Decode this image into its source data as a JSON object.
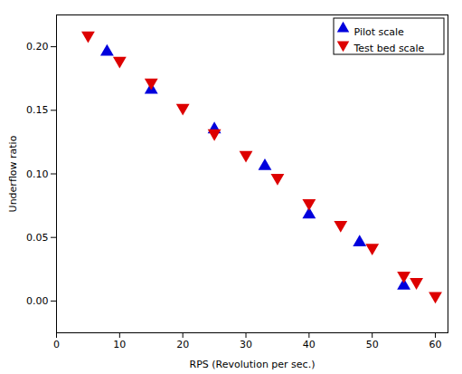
{
  "chart_data": {
    "type": "scatter",
    "xlabel": "RPS (Revolution per sec.)",
    "ylabel": "Underflow ratio",
    "xlim": [
      0,
      62
    ],
    "ylim": [
      -0.025,
      0.225
    ],
    "xticks": [
      0,
      10,
      20,
      30,
      40,
      50,
      60
    ],
    "yticks": [
      {
        "value": 0,
        "label": "0.00"
      },
      0.05,
      {
        "value": 0.1,
        "label": "0.10"
      },
      0.15,
      {
        "value": 0.2,
        "label": "0.20"
      }
    ],
    "legend": "upper right",
    "series": [
      {
        "name": "Pilot scale",
        "color": "#0000dd",
        "marker": "triangle-up",
        "x": [
          8,
          15,
          25,
          33,
          40,
          48,
          55
        ],
        "values": [
          0.196,
          0.166,
          0.135,
          0.106,
          0.068,
          0.046,
          0.012
        ]
      },
      {
        "name": "Test bed scale",
        "color": "#dd0000",
        "marker": "triangle-down",
        "x": [
          5,
          10,
          15,
          20,
          25,
          30,
          35,
          40,
          45,
          50,
          55,
          57,
          60
        ],
        "values": [
          0.209,
          0.189,
          0.172,
          0.152,
          0.132,
          0.115,
          0.097,
          0.077,
          0.06,
          0.042,
          0.02,
          0.015,
          0.004
        ]
      }
    ]
  }
}
